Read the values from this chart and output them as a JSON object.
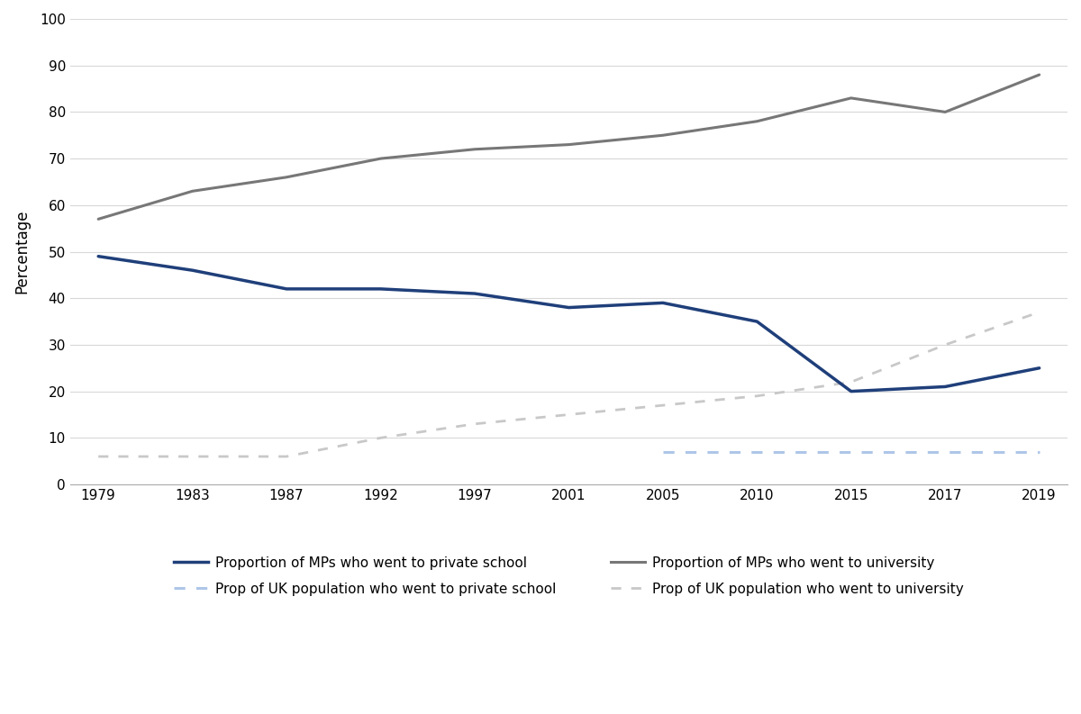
{
  "years": [
    1979,
    1983,
    1987,
    1992,
    1997,
    2001,
    2005,
    2010,
    2015,
    2017,
    2019
  ],
  "year_labels": [
    "1979",
    "1983",
    "1987",
    "1992",
    "1997",
    "2001",
    "2005",
    "2010",
    "2015",
    "2017",
    "2019"
  ],
  "mp_private_school": [
    49,
    46,
    42,
    42,
    41,
    38,
    39,
    35,
    20,
    21,
    25
  ],
  "mp_university": [
    57,
    63,
    66,
    70,
    72,
    73,
    75,
    78,
    83,
    80,
    88
  ],
  "uk_private_school": [
    null,
    null,
    null,
    null,
    null,
    null,
    7,
    7,
    7,
    7,
    7
  ],
  "uk_university": [
    6,
    6,
    6,
    10,
    13,
    15,
    17,
    19,
    22,
    30,
    37
  ],
  "mp_private_color": "#1f3f7a",
  "mp_university_color": "#777777",
  "uk_private_color": "#aec6e8",
  "uk_university_color": "#c8c8c8",
  "ylabel": "Percentage",
  "ylim": [
    0,
    100
  ],
  "yticks": [
    0,
    10,
    20,
    30,
    40,
    50,
    60,
    70,
    80,
    90,
    100
  ],
  "legend_labels": [
    "Proportion of MPs who went to private school",
    "Prop of UK population who went to private school",
    "Proportion of MPs who went to university",
    "Prop of UK population who went to university"
  ],
  "background_color": "#ffffff"
}
